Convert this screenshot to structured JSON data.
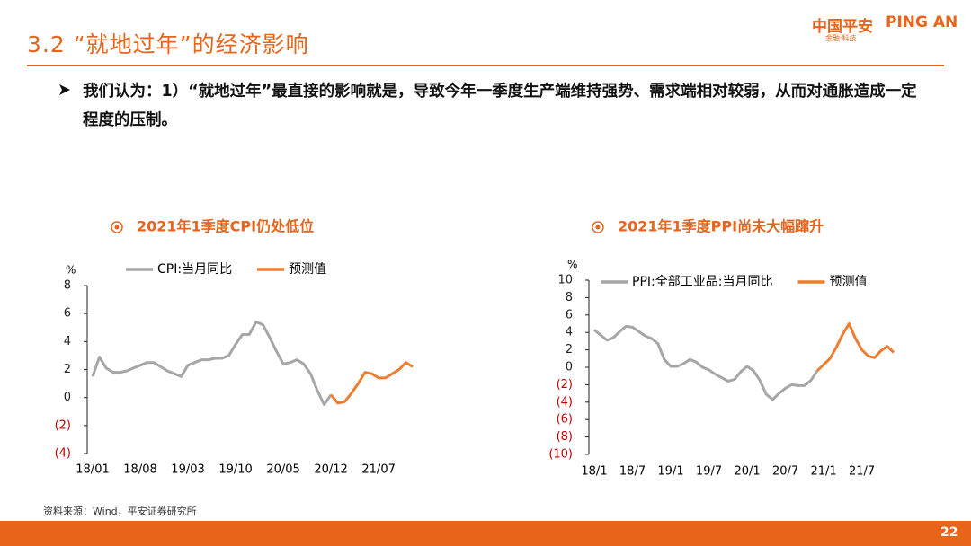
{
  "header": {
    "title": "3.2 “就地过年”的经济影响",
    "logo_cn": "中国平安",
    "logo_en": "PING AN",
    "logo_sub": "金融·科技"
  },
  "bullet": "我们认为：1）“就地过年”最直接的影响就是，导致今年一季度生产端维持强势、需求端相对较弱，从而对通胀造成一定程度的压制。",
  "chart_data": [
    {
      "type": "line",
      "title": "2021年1季度CPI仍处低位",
      "y_label": "%",
      "categories": [
        "18/01",
        null,
        null,
        null,
        null,
        null,
        null,
        "18/08",
        null,
        null,
        null,
        null,
        null,
        null,
        "19/03",
        null,
        null,
        null,
        null,
        null,
        null,
        "19/10",
        null,
        null,
        null,
        null,
        null,
        null,
        "20/05",
        null,
        null,
        null,
        null,
        null,
        null,
        "20/12",
        null,
        null,
        null,
        null,
        null,
        null,
        "21/07",
        null,
        null,
        null,
        null,
        null
      ],
      "series": [
        {
          "name": "CPI:当月同比",
          "color": "#a6a6a6",
          "values": [
            1.5,
            2.9,
            2.1,
            1.8,
            1.8,
            1.9,
            2.1,
            2.3,
            2.5,
            2.5,
            2.2,
            1.9,
            1.7,
            1.5,
            2.3,
            2.5,
            2.7,
            2.7,
            2.8,
            2.8,
            3.0,
            3.8,
            4.5,
            4.5,
            5.4,
            5.2,
            4.3,
            3.3,
            2.4,
            2.5,
            2.7,
            2.4,
            1.7,
            0.5,
            -0.5,
            0.2,
            null,
            null,
            null,
            null,
            null,
            null,
            null,
            null,
            null,
            null,
            null,
            null
          ]
        },
        {
          "name": "预测值",
          "color": "#ed7d31",
          "values": [
            null,
            null,
            null,
            null,
            null,
            null,
            null,
            null,
            null,
            null,
            null,
            null,
            null,
            null,
            null,
            null,
            null,
            null,
            null,
            null,
            null,
            null,
            null,
            null,
            null,
            null,
            null,
            null,
            null,
            null,
            null,
            null,
            null,
            null,
            null,
            0.2,
            -0.4,
            -0.3,
            0.3,
            1.0,
            1.8,
            1.7,
            1.4,
            1.4,
            1.7,
            2.0,
            2.5,
            2.2
          ]
        }
      ],
      "ylim": [
        -4,
        8
      ],
      "yticks": [
        8,
        6,
        4,
        2,
        0,
        {
          "value": -2,
          "label": "(2)"
        },
        {
          "value": -4,
          "label": "(4)"
        }
      ]
    },
    {
      "type": "line",
      "title": "2021年1季度PPI尚未大幅蹿升",
      "y_label": "%",
      "categories": [
        "18/1",
        null,
        null,
        null,
        null,
        null,
        "18/7",
        null,
        null,
        null,
        null,
        null,
        "19/1",
        null,
        null,
        null,
        null,
        null,
        "19/7",
        null,
        null,
        null,
        null,
        null,
        "20/1",
        null,
        null,
        null,
        null,
        null,
        "20/7",
        null,
        null,
        null,
        null,
        null,
        "21/1",
        null,
        null,
        null,
        null,
        null,
        "21/7",
        null,
        null,
        null,
        null,
        null
      ],
      "series": [
        {
          "name": "PPI:全部工业品:当月同比",
          "color": "#a6a6a6",
          "values": [
            4.3,
            3.7,
            3.1,
            3.4,
            4.1,
            4.7,
            4.6,
            4.1,
            3.6,
            3.3,
            2.7,
            0.9,
            0.1,
            0.1,
            0.4,
            0.9,
            0.6,
            0.0,
            -0.3,
            -0.8,
            -1.2,
            -1.6,
            -1.4,
            -0.5,
            0.1,
            -0.4,
            -1.5,
            -3.1,
            -3.7,
            -3.0,
            -2.4,
            -2.0,
            -2.1,
            -2.1,
            -1.5,
            -0.4,
            null,
            null,
            null,
            null,
            null,
            null,
            null,
            null,
            null,
            null,
            null,
            null
          ]
        },
        {
          "name": "预测值",
          "color": "#ed7d31",
          "values": [
            null,
            null,
            null,
            null,
            null,
            null,
            null,
            null,
            null,
            null,
            null,
            null,
            null,
            null,
            null,
            null,
            null,
            null,
            null,
            null,
            null,
            null,
            null,
            null,
            null,
            null,
            null,
            null,
            null,
            null,
            null,
            null,
            null,
            null,
            null,
            -0.4,
            0.3,
            1.0,
            2.3,
            3.8,
            5.0,
            3.3,
            2.0,
            1.3,
            1.1,
            1.9,
            2.4,
            1.7
          ]
        }
      ],
      "ylim": [
        -10,
        10
      ],
      "yticks": [
        10,
        8,
        6,
        4,
        2,
        0,
        {
          "value": -2,
          "label": "(2)"
        },
        {
          "value": -4,
          "label": "(4)"
        },
        {
          "value": -6,
          "label": "(6)"
        },
        {
          "value": -8,
          "label": "(8)"
        },
        {
          "value": -10,
          "label": "(10)"
        }
      ]
    }
  ],
  "source": "资料来源：Wind，平安证券研究所",
  "page_number": "22"
}
